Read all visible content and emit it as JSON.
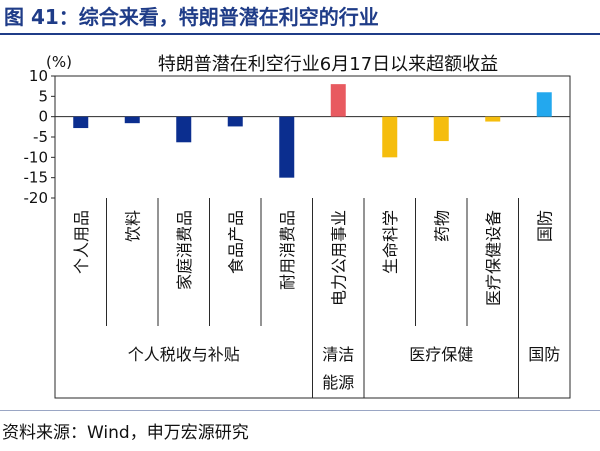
{
  "page": {
    "title": "图 41：综合来看，特朗普潜在利空的行业",
    "source": "资料来源：Wind，申万宏源研究"
  },
  "colors": {
    "title": "#1f3c88",
    "personal_tax": "#0b2e8f",
    "clean_energy": "#e85a60",
    "healthcare": "#f5bd0d",
    "defense": "#23a8ee"
  },
  "chart_data": {
    "type": "bar",
    "title": "特朗普潜在利空行业6月17日以来超额收益",
    "ylabel": "(%)",
    "ylim": [
      -20,
      10
    ],
    "yticks": [
      10,
      5,
      0,
      -5,
      -10,
      -15,
      -20
    ],
    "grid": false,
    "categories": [
      "个人用品",
      "饮料",
      "家庭消费品",
      "食品产品",
      "耐用消费品",
      "电力公用事业",
      "生命科学",
      "药物",
      "医疗保健设备",
      "国防"
    ],
    "values": [
      -2.8,
      -1.6,
      -6.3,
      -2.4,
      -15.0,
      8.0,
      -10.0,
      -6.0,
      -1.2,
      6.0
    ],
    "groups": [
      {
        "label": "个人税收与补贴",
        "members": [
          0,
          1,
          2,
          3,
          4
        ],
        "color_key": "personal_tax"
      },
      {
        "label": "清洁能源",
        "members": [
          5
        ],
        "color_key": "clean_energy"
      },
      {
        "label": "医疗保健",
        "members": [
          6,
          7,
          8
        ],
        "color_key": "healthcare"
      },
      {
        "label": "国防",
        "members": [
          9
        ],
        "color_key": "defense"
      }
    ]
  }
}
